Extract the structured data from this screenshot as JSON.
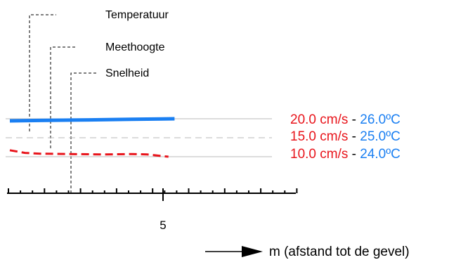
{
  "chart_data": {
    "type": "line",
    "legend": [
      {
        "label": "Temperatuur"
      },
      {
        "label": "Meethoogte"
      },
      {
        "label": "Snelheid"
      }
    ],
    "scale_labels": [
      {
        "speed": "20.0 cm/s",
        "sep": "-",
        "temp": "26.0ºC",
        "speed_value": 20.0,
        "temp_value": 26.0
      },
      {
        "speed": "15.0 cm/s",
        "sep": "-",
        "temp": "25.0ºC",
        "speed_value": 15.0,
        "temp_value": 25.0
      },
      {
        "speed": "10.0 cm/s",
        "sep": "-",
        "temp": "24.0ºC",
        "speed_value": 10.0,
        "temp_value": 24.0
      }
    ],
    "x_tick_labels": [
      "5"
    ],
    "x_ticks": [
      0,
      1,
      2,
      3,
      4,
      5,
      6,
      7
    ],
    "xlim": [
      0,
      7
    ],
    "xlabel": "m (afstand tot de gevel)",
    "series": [
      {
        "name": "Temperatuur",
        "unit": "ºC",
        "color": "#1a7ff2",
        "x": [
          0,
          1,
          2,
          3,
          4,
          5,
          5.4
        ],
        "values": [
          25.89,
          25.91,
          25.93,
          25.95,
          25.97,
          25.99,
          26.0
        ]
      },
      {
        "name": "Snelheid",
        "unit": "cm/s",
        "color": "#e8141b",
        "dashed": true,
        "x": [
          0,
          0.5,
          1,
          2,
          3,
          4,
          4.5,
          5.2
        ],
        "values": [
          11.7,
          11.0,
          10.8,
          10.7,
          10.6,
          10.7,
          10.6,
          10.0
        ]
      }
    ],
    "colors": {
      "speed_text": "#e8141b",
      "temp_text": "#1a7ff2",
      "gridline": "#b8b8b8",
      "axis": "#000000"
    },
    "grid": true
  }
}
